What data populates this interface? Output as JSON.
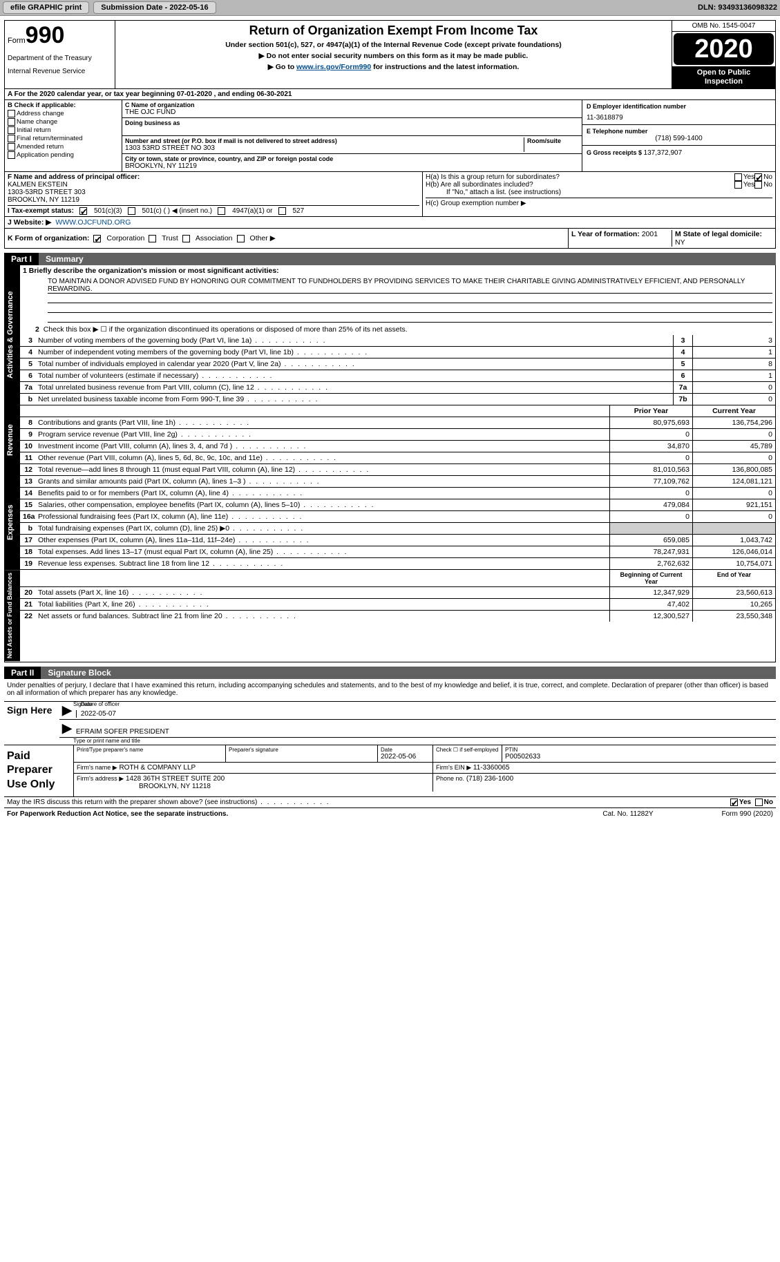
{
  "toolbar": {
    "efile": "efile GRAPHIC print",
    "submission_label": "Submission Date - 2022-05-16",
    "dln": "DLN: 93493136098322"
  },
  "header": {
    "form_word": "Form",
    "form_num": "990",
    "dept1": "Department of the Treasury",
    "dept2": "Internal Revenue Service",
    "title": "Return of Organization Exempt From Income Tax",
    "sub1": "Under section 501(c), 527, or 4947(a)(1) of the Internal Revenue Code (except private foundations)",
    "sub2": "▶ Do not enter social security numbers on this form as it may be made public.",
    "sub3_pre": "▶ Go to ",
    "sub3_link": "www.irs.gov/Form990",
    "sub3_post": " for instructions and the latest information.",
    "omb": "OMB No. 1545-0047",
    "year": "2020",
    "inspect1": "Open to Public",
    "inspect2": "Inspection"
  },
  "lineA": "A For the 2020 calendar year, or tax year beginning 07-01-2020   , and ending 06-30-2021",
  "boxB": {
    "title": "B Check if applicable:",
    "opts": [
      "Address change",
      "Name change",
      "Initial return",
      "Final return/terminated",
      "Amended return",
      "Application pending"
    ]
  },
  "boxC": {
    "name_label": "C Name of organization",
    "name": "THE OJC FUND",
    "dba_label": "Doing business as",
    "addr_label": "Number and street (or P.O. box if mail is not delivered to street address)",
    "room_label": "Room/suite",
    "addr": "1303 53RD STREET NO 303",
    "city_label": "City or town, state or province, country, and ZIP or foreign postal code",
    "city": "BROOKLYN, NY  11219"
  },
  "boxD": {
    "ein_label": "D Employer identification number",
    "ein": "11-3618879",
    "phone_label": "E Telephone number",
    "phone": "(718) 599-1400",
    "gross_label": "G Gross receipts $ ",
    "gross": "137,372,907"
  },
  "boxF": {
    "label": "F  Name and address of principal officer:",
    "name": "KALMEN EKSTEIN",
    "addr1": "1303-53RD STREET 303",
    "addr2": "BROOKLYN, NY  11219"
  },
  "boxH": {
    "ha": "H(a)  Is this a group return for subordinates?",
    "hb": "H(b)  Are all subordinates included?",
    "hbnote": "If \"No,\" attach a list. (see instructions)",
    "hc": "H(c)  Group exemption number ▶",
    "yes": "Yes",
    "no": "No"
  },
  "boxI": {
    "label": "I   Tax-exempt status:",
    "o1": "501(c)(3)",
    "o2": "501(c) (  ) ◀ (insert no.)",
    "o3": "4947(a)(1) or",
    "o4": "527"
  },
  "boxJ": {
    "label": "J   Website: ▶",
    "value": "WWW.OJCFUND.ORG"
  },
  "boxK": {
    "label": "K Form of organization:",
    "o1": "Corporation",
    "o2": "Trust",
    "o3": "Association",
    "o4": "Other ▶",
    "l_label": "L Year of formation: ",
    "l_val": "2001",
    "m_label": "M State of legal domicile: ",
    "m_val": "NY"
  },
  "part1": {
    "num": "Part I",
    "title": "Summary"
  },
  "mission_label": "1   Briefly describe the organization's mission or most significant activities:",
  "mission": "TO MAINTAIN A DONOR ADVISED FUND BY HONORING OUR COMMITMENT TO FUNDHOLDERS BY PROVIDING SERVICES TO MAKE THEIR CHARITABLE GIVING ADMINISTRATIVELY EFFICIENT, AND PERSONALLY REWARDING.",
  "line2": "Check this box ▶ ☐  if the organization discontinued its operations or disposed of more than 25% of its net assets.",
  "gov_rows": [
    {
      "n": "3",
      "d": "Number of voting members of the governing body (Part VI, line 1a)",
      "box": "3",
      "v": "3"
    },
    {
      "n": "4",
      "d": "Number of independent voting members of the governing body (Part VI, line 1b)",
      "box": "4",
      "v": "1"
    },
    {
      "n": "5",
      "d": "Total number of individuals employed in calendar year 2020 (Part V, line 2a)",
      "box": "5",
      "v": "8"
    },
    {
      "n": "6",
      "d": "Total number of volunteers (estimate if necessary)",
      "box": "6",
      "v": "1"
    },
    {
      "n": "7a",
      "d": "Total unrelated business revenue from Part VIII, column (C), line 12",
      "box": "7a",
      "v": "0"
    },
    {
      "n": "b",
      "d": "Net unrelated business taxable income from Form 990-T, line 39",
      "box": "7b",
      "v": "0"
    }
  ],
  "col_hdr": {
    "py": "Prior Year",
    "cy": "Current Year"
  },
  "rev_rows": [
    {
      "n": "8",
      "d": "Contributions and grants (Part VIII, line 1h)",
      "py": "80,975,693",
      "cy": "136,754,296"
    },
    {
      "n": "9",
      "d": "Program service revenue (Part VIII, line 2g)",
      "py": "0",
      "cy": "0"
    },
    {
      "n": "10",
      "d": "Investment income (Part VIII, column (A), lines 3, 4, and 7d )",
      "py": "34,870",
      "cy": "45,789"
    },
    {
      "n": "11",
      "d": "Other revenue (Part VIII, column (A), lines 5, 6d, 8c, 9c, 10c, and 11e)",
      "py": "0",
      "cy": "0"
    },
    {
      "n": "12",
      "d": "Total revenue—add lines 8 through 11 (must equal Part VIII, column (A), line 12)",
      "py": "81,010,563",
      "cy": "136,800,085"
    }
  ],
  "exp_rows": [
    {
      "n": "13",
      "d": "Grants and similar amounts paid (Part IX, column (A), lines 1–3 )",
      "py": "77,109,762",
      "cy": "124,081,121"
    },
    {
      "n": "14",
      "d": "Benefits paid to or for members (Part IX, column (A), line 4)",
      "py": "0",
      "cy": "0"
    },
    {
      "n": "15",
      "d": "Salaries, other compensation, employee benefits (Part IX, column (A), lines 5–10)",
      "py": "479,084",
      "cy": "921,151"
    },
    {
      "n": "16a",
      "d": "Professional fundraising fees (Part IX, column (A), line 11e)",
      "py": "0",
      "cy": "0"
    },
    {
      "n": "b",
      "d": "Total fundraising expenses (Part IX, column (D), line 25) ▶0",
      "py": "",
      "cy": "",
      "shade": true
    },
    {
      "n": "17",
      "d": "Other expenses (Part IX, column (A), lines 11a–11d, 11f–24e)",
      "py": "659,085",
      "cy": "1,043,742"
    },
    {
      "n": "18",
      "d": "Total expenses. Add lines 13–17 (must equal Part IX, column (A), line 25)",
      "py": "78,247,931",
      "cy": "126,046,014"
    },
    {
      "n": "19",
      "d": "Revenue less expenses. Subtract line 18 from line 12",
      "py": "2,762,632",
      "cy": "10,754,071"
    }
  ],
  "col_hdr2": {
    "py": "Beginning of Current Year",
    "cy": "End of Year"
  },
  "na_rows": [
    {
      "n": "20",
      "d": "Total assets (Part X, line 16)",
      "py": "12,347,929",
      "cy": "23,560,613"
    },
    {
      "n": "21",
      "d": "Total liabilities (Part X, line 26)",
      "py": "47,402",
      "cy": "10,265"
    },
    {
      "n": "22",
      "d": "Net assets or fund balances. Subtract line 21 from line 20",
      "py": "12,300,527",
      "cy": "23,550,348"
    }
  ],
  "tabs": {
    "gov": "Activities & Governance",
    "rev": "Revenue",
    "exp": "Expenses",
    "na": "Net Assets or Fund Balances"
  },
  "part2": {
    "num": "Part II",
    "title": "Signature Block"
  },
  "sig_para": "Under penalties of perjury, I declare that I have examined this return, including accompanying schedules and statements, and to the best of my knowledge and belief, it is true, correct, and complete. Declaration of preparer (other than officer) is based on all information of which preparer has any knowledge.",
  "sign": {
    "here": "Sign Here",
    "sig_cap": "Signature of officer",
    "date_cap": "Date",
    "date": "2022-05-07",
    "name": "EFRAIM SOFER  PRESIDENT",
    "name_cap": "Type or print name and title"
  },
  "prep": {
    "title": "Paid Preparer Use Only",
    "pt_label": "Print/Type preparer's name",
    "sig_label": "Preparer's signature",
    "date_label": "Date",
    "date": "2022-05-06",
    "check_label": "Check ☐ if self-employed",
    "ptin_label": "PTIN",
    "ptin": "P00502633",
    "firm_label": "Firm's name   ▶",
    "firm": "ROTH & COMPANY LLP",
    "fein_label": "Firm's EIN ▶",
    "fein": "11-3360065",
    "addr_label": "Firm's address ▶",
    "addr1": "1428 36TH STREET SUITE 200",
    "addr2": "BROOKLYN, NY  11218",
    "phone_label": "Phone no.",
    "phone": "(718) 236-1600"
  },
  "discuss": "May the IRS discuss this return with the preparer shown above? (see instructions)",
  "footer": {
    "l": "For Paperwork Reduction Act Notice, see the separate instructions.",
    "m": "Cat. No. 11282Y",
    "r": "Form 990 (2020)"
  }
}
